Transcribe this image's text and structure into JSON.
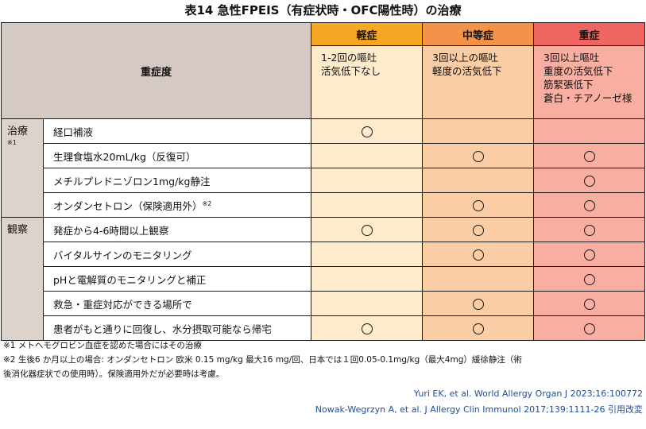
{
  "title": "表14 急性FPEIS（有症状時・OFC陽性時）の治療",
  "header": {
    "severity_label": "重症度",
    "mild": {
      "label": "軽症",
      "lines": [
        "1-2回の嘔吐",
        "活気低下なし"
      ]
    },
    "moderate": {
      "label": "中等症",
      "lines": [
        "3回以上の嘔吐",
        "軽度の活気低下"
      ]
    },
    "severe": {
      "label": "重症",
      "lines": [
        "3回以上嘔吐",
        "重度の活気低下",
        "筋緊張低下",
        "蒼白・チアノーゼ様"
      ]
    }
  },
  "categories": [
    {
      "label": "治療",
      "note": "※1",
      "rows": [
        {
          "text": "経口補液",
          "sup": "",
          "mild": true,
          "moderate": false,
          "severe": false
        },
        {
          "text": "生理食塩水20mL/kg（反復可）",
          "sup": "",
          "mild": false,
          "moderate": true,
          "severe": true
        },
        {
          "text": "メチルプレドニゾロン1mg/kg静注",
          "sup": "",
          "mild": false,
          "moderate": false,
          "severe": true
        },
        {
          "text": "オンダンセトロン（保険適用外）",
          "sup": "※2",
          "mild": false,
          "moderate": true,
          "severe": true
        }
      ]
    },
    {
      "label": "観察",
      "note": "",
      "rows": [
        {
          "text": "発症から4-6時間以上観察",
          "sup": "",
          "mild": true,
          "moderate": true,
          "severe": true
        },
        {
          "text": "バイタルサインのモニタリング",
          "sup": "",
          "mild": false,
          "moderate": true,
          "severe": true
        },
        {
          "text": "pHと電解質のモニタリングと補正",
          "sup": "",
          "mild": false,
          "moderate": false,
          "severe": true
        },
        {
          "text": "救急・重症対応ができる場所で",
          "sup": "",
          "mild": false,
          "moderate": true,
          "severe": true
        },
        {
          "text": "患者がもと通りに回復し、水分摂取可能なら帰宅",
          "sup": "",
          "mild": true,
          "moderate": true,
          "severe": true
        }
      ]
    }
  ],
  "mark_symbol": "circle",
  "footnotes": [
    "※1 メトヘモグロビン血症を認めた場合にはその治療",
    "※2 生後6 か月以上の場合: オンダンセトロン 欧米 0.15 mg/kg 最大16 mg/回、日本では１回0.05-0.1mg/kg（最大4mg）緩徐静注（術",
    "後消化器症状での使用時）。保険適用外だが必要時は考慮。"
  ],
  "citations": [
    "Yuri EK, et al. World Allergy Organ J 2023;16:100772",
    "Nowak-Wegrzyn A, et al. J Allergy Clin Immunol 2017;139:1111-26 引用改変"
  ],
  "colors": {
    "mild_header": "#f6a723",
    "moderate_header": "#f39249",
    "severe_header": "#ef6561",
    "mild_cell": "#fdebcc",
    "moderate_cell": "#fbcda5",
    "severe_cell": "#f8aea1",
    "severity_header_bg": "#d5c9c3",
    "citation_text": "#1f4d99"
  }
}
